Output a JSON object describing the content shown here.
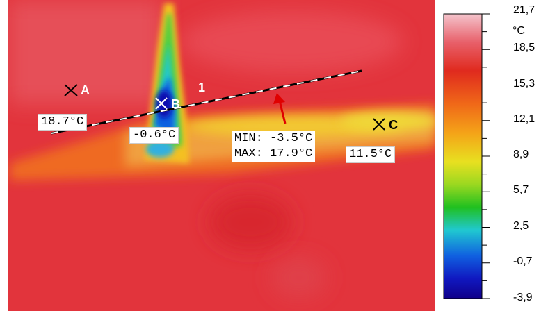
{
  "image": {
    "palette": {
      "hot": "#e0303a",
      "warm": "#f06a20",
      "yellow": "#f2d020",
      "cold": "#0010a0"
    }
  },
  "markers": {
    "A": {
      "letter": "A",
      "label": "18.7°C"
    },
    "B": {
      "letter": "B",
      "label": "-0.6°C"
    },
    "C": {
      "letter": "C",
      "label": "11.5°C"
    }
  },
  "line": {
    "number": "1",
    "min_text": "MIN: -3.5°C",
    "max_text": "MAX: 17.9°C"
  },
  "scale": {
    "unit": "°C",
    "ticks": [
      "21,7",
      "18,5",
      "15,3",
      "12,1",
      "8,9",
      "5,7",
      "2,5",
      "-0,7",
      "-3,9"
    ],
    "colors": [
      "#f4c4cc",
      "#e8606a",
      "#e02a1e",
      "#f06a18",
      "#f4a418",
      "#e8e020",
      "#9ad820",
      "#20c020",
      "#20c8d0",
      "#1060e0",
      "#1018c0",
      "#10008a"
    ]
  }
}
